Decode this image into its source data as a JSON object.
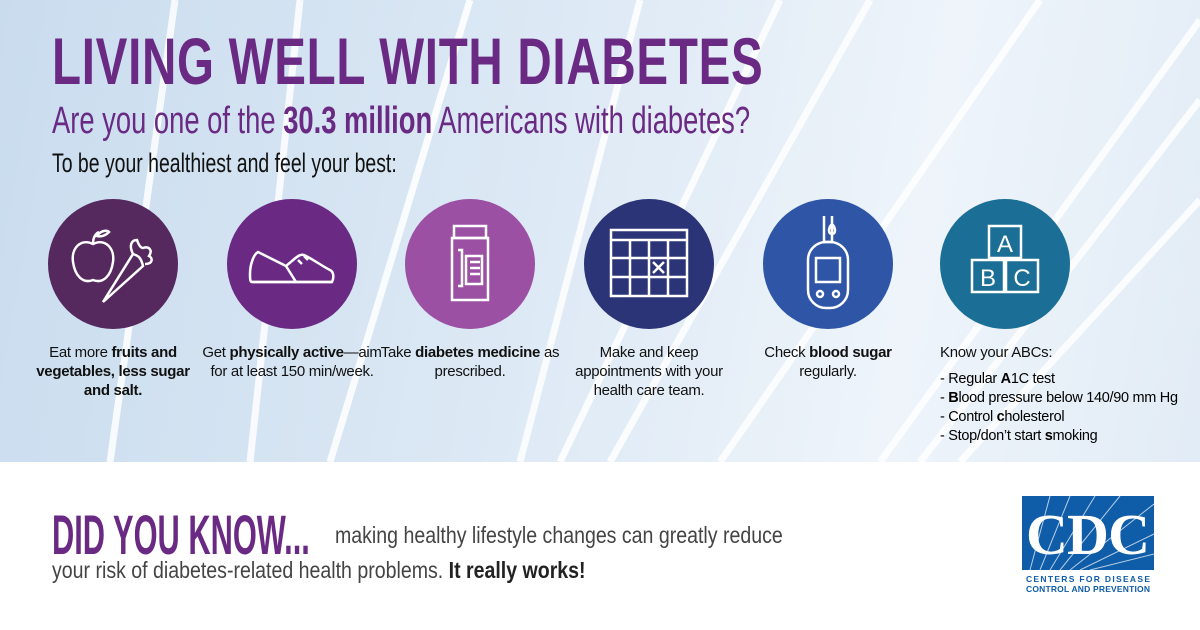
{
  "header": {
    "title": "LIVING WELL WITH DIABETES",
    "subtitle_pre": "Are you one of the ",
    "subtitle_bold": "30.3 million",
    "subtitle_post": " Americans with diabetes?",
    "lead": "To be your healthiest and feel your best:"
  },
  "colors": {
    "title": "#6a2a84",
    "circle1": "#55285e",
    "circle2": "#6a2a84",
    "circle3": "#9b50a3",
    "circle4": "#2c3478",
    "circle5": "#2f56a6",
    "circle6": "#1b6e96",
    "cdc_blue": "#0f5ca8"
  },
  "items": [
    {
      "icon": "apple-carrot-icon",
      "t1": "Eat more ",
      "b1": "fruits and vegetables, less sugar and salt.",
      "t2": ""
    },
    {
      "icon": "sneaker-icon",
      "t1": "Get ",
      "b1": "physically active",
      "t2": "—aim for at least 150 min/week."
    },
    {
      "icon": "pill-bottle-icon",
      "t1": "Take ",
      "b1": "diabetes medicine",
      "t2": " as prescribed."
    },
    {
      "icon": "calendar-icon",
      "t1": "Make and keep appointments with your health care team.",
      "b1": "",
      "t2": ""
    },
    {
      "icon": "glucose-meter-icon",
      "t1": "Check ",
      "b1": "blood sugar",
      "t2": " regularly."
    },
    {
      "icon": "abc-blocks-icon",
      "heading": "Know your ABCs:",
      "list": [
        {
          "pre": "- Regular ",
          "b": "A",
          "post": "1C test"
        },
        {
          "pre": "- ",
          "b": "B",
          "post": "lood pressure below 140/90 mm Hg"
        },
        {
          "pre": "- Control ",
          "b": "c",
          "post": "holesterol"
        },
        {
          "pre": "- Stop/don’t start ",
          "b": "s",
          "post": "moking"
        }
      ],
      "blocks": [
        "A",
        "B",
        "C"
      ]
    }
  ],
  "footer": {
    "did_you_know": "DID YOU KNOW...",
    "line1": "making healthy lifestyle changes can greatly reduce",
    "line2_pre": "your risk of diabetes-related health problems. ",
    "line2_bold": "It really works!"
  },
  "logo": {
    "mark": "CDC",
    "line1": "CENTERS FOR DISEASE",
    "line2": "CONTROL AND PREVENTION"
  }
}
